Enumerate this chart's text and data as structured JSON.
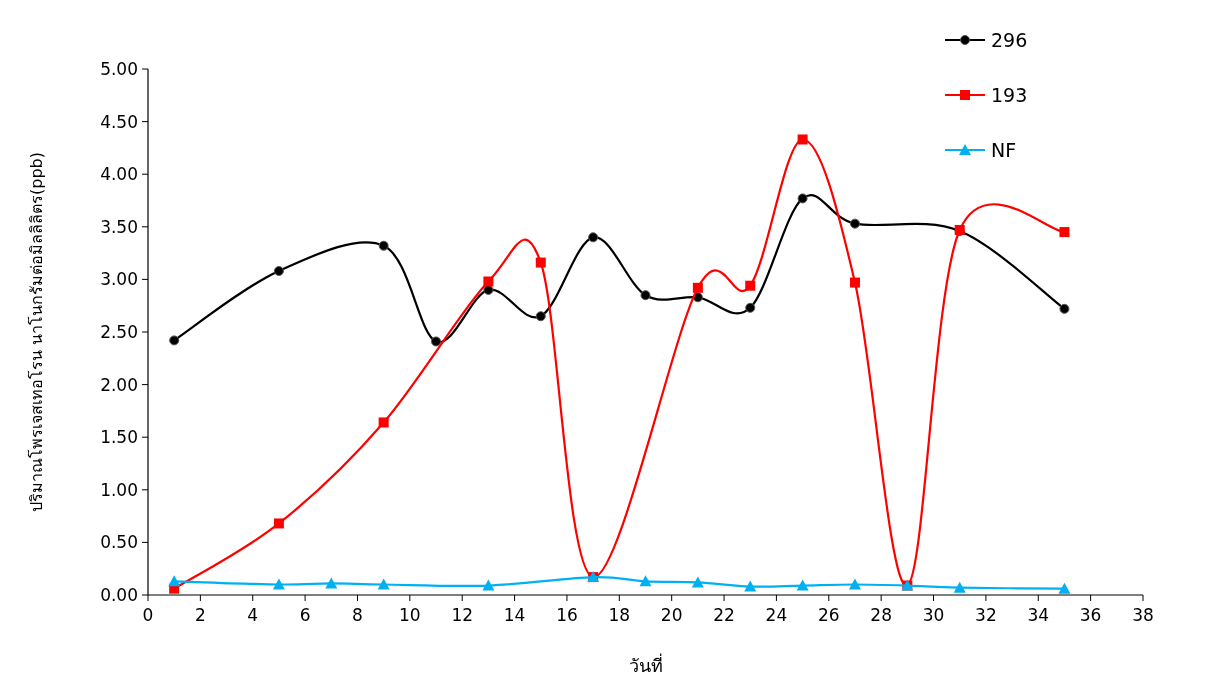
{
  "chart_data": {
    "type": "line",
    "xlabel": "วันที่",
    "ylabel": "ปริมาณโพรเจสเทอโรน นาโนกรัมต่อมิลลิลิตร(ppb)",
    "xlim": [
      0,
      38
    ],
    "xticks": [
      0,
      2,
      4,
      6,
      8,
      10,
      12,
      14,
      16,
      18,
      20,
      22,
      24,
      26,
      28,
      30,
      32,
      34,
      36,
      38
    ],
    "ylim": [
      0,
      5
    ],
    "yticks": [
      {
        "value": 0,
        "label": "0.00"
      },
      {
        "value": 0.5,
        "label": "0.50"
      },
      {
        "value": 1,
        "label": "1.00"
      },
      {
        "value": 1.5,
        "label": "1.50"
      },
      {
        "value": 2,
        "label": "2.00"
      },
      {
        "value": 2.5,
        "label": "2.50"
      },
      {
        "value": 3,
        "label": "3.00"
      },
      {
        "value": 3.5,
        "label": "3.50"
      },
      {
        "value": 4,
        "label": "4.00"
      },
      {
        "value": 4.5,
        "label": "4.50"
      },
      {
        "value": 5,
        "label": "5.00"
      }
    ],
    "grid": false,
    "legend": "top right",
    "series": [
      {
        "name": "296",
        "color": "#000000",
        "marker": "circle",
        "x": [
          1,
          5,
          9,
          11,
          13,
          15,
          17,
          19,
          21,
          23,
          25,
          27,
          31,
          35
        ],
        "values": [
          2.42,
          3.08,
          3.32,
          2.41,
          2.9,
          2.65,
          3.4,
          2.85,
          2.83,
          2.73,
          3.77,
          3.53,
          3.46,
          2.72
        ]
      },
      {
        "name": "193",
        "color": "#ff0000",
        "marker": "square",
        "x": [
          1,
          5,
          9,
          13,
          15,
          17,
          21,
          23,
          25,
          27,
          29,
          31,
          35
        ],
        "values": [
          0.06,
          0.68,
          1.64,
          2.98,
          3.16,
          0.17,
          2.92,
          2.94,
          4.33,
          2.97,
          0.09,
          3.47,
          3.45
        ]
      },
      {
        "name": "NF",
        "color": "#00b0f0",
        "marker": "triangle",
        "x": [
          1,
          5,
          7,
          9,
          13,
          17,
          19,
          21,
          23,
          25,
          27,
          29,
          31,
          35
        ],
        "values": [
          0.13,
          0.1,
          0.11,
          0.1,
          0.09,
          0.17,
          0.13,
          0.12,
          0.08,
          0.09,
          0.1,
          0.09,
          0.07,
          0.06
        ]
      }
    ]
  }
}
